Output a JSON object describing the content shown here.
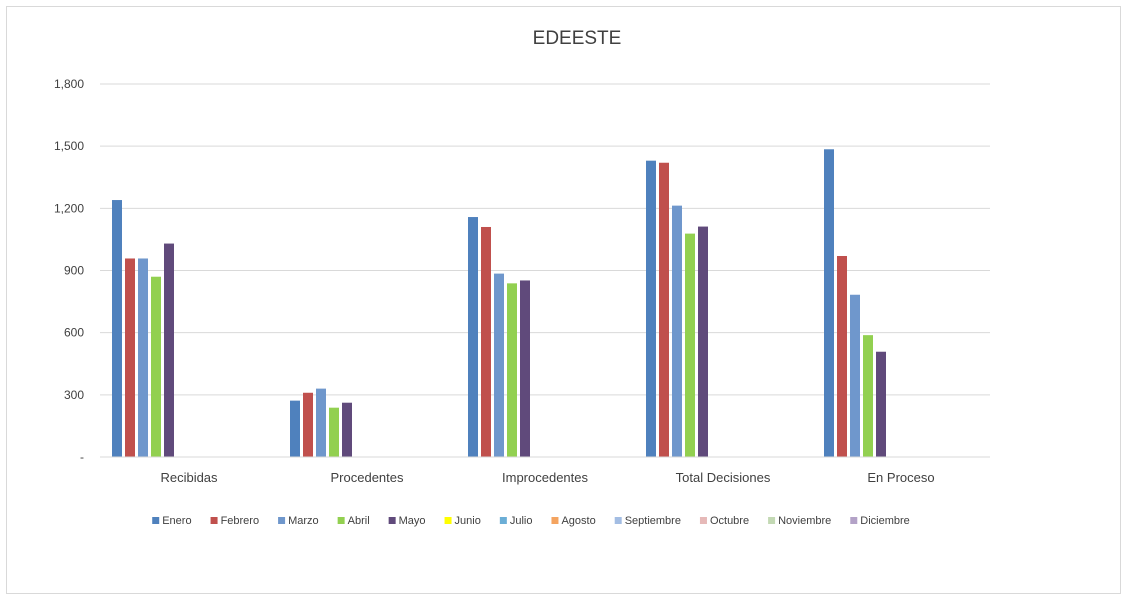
{
  "chart_data": {
    "type": "bar",
    "title": "EDEESTE",
    "xlabel": "",
    "ylabel": "",
    "ylim": [
      0,
      1800
    ],
    "yticks": [
      0,
      300,
      600,
      900,
      1200,
      1500,
      1800
    ],
    "ytick_labels": [
      "-",
      "300",
      "600",
      "900",
      "1,200",
      "1,500",
      "1,800"
    ],
    "grid": true,
    "legend_position": "bottom",
    "categories": [
      "Recibidas",
      "Procedentes",
      "Improcedentes",
      "Total Decisiones",
      "En Proceso"
    ],
    "series": [
      {
        "name": "Enero",
        "color": "#4f81bd",
        "values": [
          1240,
          272,
          1158,
          1430,
          1485
        ]
      },
      {
        "name": "Febrero",
        "color": "#c0504d",
        "values": [
          958,
          310,
          1110,
          1420,
          970
        ]
      },
      {
        "name": "Marzo",
        "color": "#6f97cc",
        "values": [
          958,
          330,
          885,
          1213,
          783
        ]
      },
      {
        "name": "Abril",
        "color": "#92d050",
        "values": [
          870,
          238,
          838,
          1078,
          588
        ]
      },
      {
        "name": "Mayo",
        "color": "#604a7b",
        "values": [
          1030,
          262,
          852,
          1112,
          508
        ]
      },
      {
        "name": "Junio",
        "color": "#ffff00",
        "values": [
          null,
          null,
          null,
          null,
          null
        ]
      },
      {
        "name": "Julio",
        "color": "#6baed6",
        "values": [
          null,
          null,
          null,
          null,
          null
        ]
      },
      {
        "name": "Agosto",
        "color": "#f4a460",
        "values": [
          null,
          null,
          null,
          null,
          null
        ]
      },
      {
        "name": "Septiembre",
        "color": "#a3bde3",
        "values": [
          null,
          null,
          null,
          null,
          null
        ]
      },
      {
        "name": "Octubre",
        "color": "#e6b9b8",
        "values": [
          null,
          null,
          null,
          null,
          null
        ]
      },
      {
        "name": "Noviembre",
        "color": "#c3d9b4",
        "values": [
          null,
          null,
          null,
          null,
          null
        ]
      },
      {
        "name": "Diciembre",
        "color": "#b3a2c7",
        "values": [
          null,
          null,
          null,
          null,
          null
        ]
      }
    ]
  }
}
